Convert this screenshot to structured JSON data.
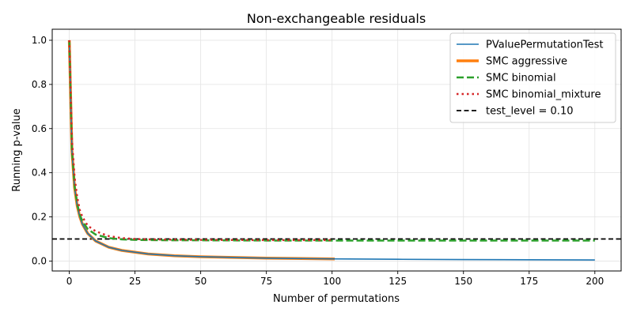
{
  "chart_data": {
    "type": "line",
    "title": "Non-exchangeable residuals",
    "xlabel": "Number of permutations",
    "ylabel": "Running p-value",
    "xlim": [
      -6.5,
      210
    ],
    "ylim": [
      -0.045,
      1.05
    ],
    "x_ticks": [
      0,
      25,
      50,
      75,
      100,
      125,
      150,
      175,
      200
    ],
    "x_tick_labels": [
      "0",
      "25",
      "50",
      "75",
      "100",
      "125",
      "150",
      "175",
      "200"
    ],
    "y_ticks": [
      0.0,
      0.2,
      0.4,
      0.6,
      0.8,
      1.0
    ],
    "y_tick_labels": [
      "0.0",
      "0.2",
      "0.4",
      "0.6",
      "0.8",
      "1.0"
    ],
    "grid": true,
    "legend_position": "top-right",
    "hline": {
      "y": 0.1,
      "label": "test_level = 0.10",
      "color": "#000000",
      "style": "dashed"
    },
    "series": [
      {
        "name": "PValuePermutationTest",
        "color": "#1f77b4",
        "style": "solid",
        "x": [
          0,
          1,
          2,
          3,
          4,
          5,
          7,
          10,
          15,
          20,
          30,
          40,
          50,
          75,
          100,
          125,
          150,
          175,
          200
        ],
        "y": [
          1.0,
          0.5,
          0.333,
          0.25,
          0.2,
          0.167,
          0.125,
          0.091,
          0.0625,
          0.048,
          0.032,
          0.024,
          0.0196,
          0.013,
          0.0099,
          0.0079,
          0.0066,
          0.0057,
          0.005
        ]
      },
      {
        "name": "SMC aggressive",
        "color": "#ff7f0e",
        "style": "solid-thick",
        "x": [
          0,
          1,
          2,
          3,
          4,
          5,
          7,
          10,
          15,
          20,
          30,
          40,
          50,
          75,
          101
        ],
        "y": [
          1.0,
          0.5,
          0.333,
          0.25,
          0.2,
          0.167,
          0.125,
          0.091,
          0.0625,
          0.048,
          0.032,
          0.024,
          0.0196,
          0.013,
          0.0098
        ]
      },
      {
        "name": "SMC binomial",
        "color": "#2ca02c",
        "style": "dashed",
        "x": [
          0,
          1,
          2,
          3,
          4,
          5,
          7,
          10,
          15,
          20,
          25,
          30,
          40,
          50,
          75,
          100,
          125,
          150,
          175,
          200
        ],
        "y": [
          1.0,
          0.5,
          0.34,
          0.26,
          0.21,
          0.18,
          0.145,
          0.12,
          0.104,
          0.098,
          0.096,
          0.095,
          0.094,
          0.094,
          0.093,
          0.093,
          0.093,
          0.093,
          0.093,
          0.093
        ]
      },
      {
        "name": "SMC binomial_mixture",
        "color": "#d62728",
        "style": "dotted",
        "x": [
          0,
          1,
          2,
          3,
          4,
          5,
          7,
          10,
          15,
          20,
          25,
          30,
          40,
          50,
          75,
          100
        ],
        "y": [
          1.0,
          0.55,
          0.38,
          0.29,
          0.23,
          0.2,
          0.16,
          0.135,
          0.113,
          0.104,
          0.1,
          0.098,
          0.097,
          0.096,
          0.095,
          0.095
        ]
      }
    ]
  }
}
